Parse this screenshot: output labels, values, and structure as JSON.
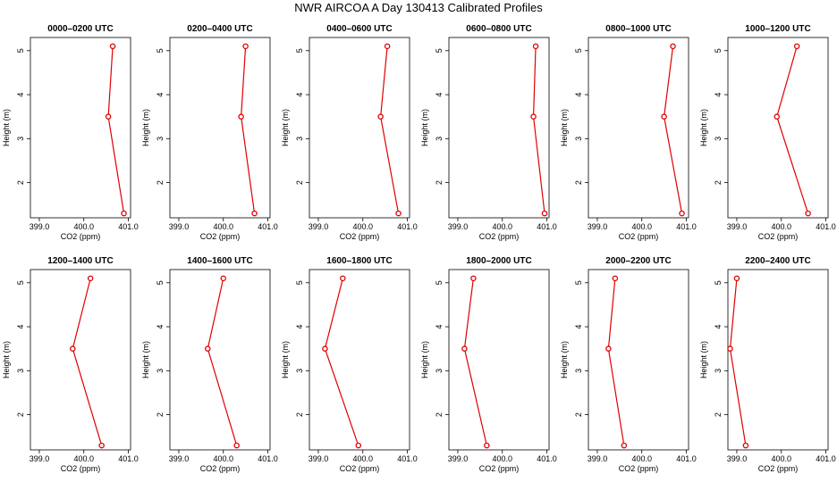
{
  "title": "NWR AIRCOA A  Day 130413  Calibrated Profiles",
  "colors": {
    "series": "#e00000",
    "axis": "#000000"
  },
  "chart_data": [
    {
      "type": "line",
      "title": "0000–0200 UTC",
      "xlabel": "CO2 (ppm)",
      "ylabel": "Height (m)",
      "xlim": [
        398.8,
        401.05
      ],
      "ylim": [
        1.2,
        5.3
      ],
      "xticks": [
        "399.0",
        "400.0",
        "401.0"
      ],
      "yticks": [
        "2",
        "3",
        "4",
        "5"
      ],
      "x": [
        400.65,
        400.55,
        400.9
      ],
      "y": [
        5.1,
        3.5,
        1.3
      ]
    },
    {
      "type": "line",
      "title": "0200–0400 UTC",
      "xlabel": "CO2 (ppm)",
      "ylabel": "Height (m)",
      "xlim": [
        398.8,
        401.05
      ],
      "ylim": [
        1.2,
        5.3
      ],
      "xticks": [
        "399.0",
        "400.0",
        "401.0"
      ],
      "yticks": [
        "2",
        "3",
        "4",
        "5"
      ],
      "x": [
        400.5,
        400.4,
        400.7
      ],
      "y": [
        5.1,
        3.5,
        1.3
      ]
    },
    {
      "type": "line",
      "title": "0400–0600 UTC",
      "xlabel": "CO2 (ppm)",
      "ylabel": "Height (m)",
      "xlim": [
        398.8,
        401.05
      ],
      "ylim": [
        1.2,
        5.3
      ],
      "xticks": [
        "399.0",
        "400.0",
        "401.0"
      ],
      "yticks": [
        "2",
        "3",
        "4",
        "5"
      ],
      "x": [
        400.55,
        400.4,
        400.8
      ],
      "y": [
        5.1,
        3.5,
        1.3
      ]
    },
    {
      "type": "line",
      "title": "0600–0800 UTC",
      "xlabel": "CO2 (ppm)",
      "ylabel": "Height (m)",
      "xlim": [
        398.8,
        401.05
      ],
      "ylim": [
        1.2,
        5.3
      ],
      "xticks": [
        "399.0",
        "400.0",
        "401.0"
      ],
      "yticks": [
        "2",
        "3",
        "4",
        "5"
      ],
      "x": [
        400.75,
        400.7,
        400.95
      ],
      "y": [
        5.1,
        3.5,
        1.3
      ]
    },
    {
      "type": "line",
      "title": "0800–1000 UTC",
      "xlabel": "CO2 (ppm)",
      "ylabel": "Height (m)",
      "xlim": [
        398.8,
        401.05
      ],
      "ylim": [
        1.2,
        5.3
      ],
      "xticks": [
        "399.0",
        "400.0",
        "401.0"
      ],
      "yticks": [
        "2",
        "3",
        "4",
        "5"
      ],
      "x": [
        400.7,
        400.5,
        400.9
      ],
      "y": [
        5.1,
        3.5,
        1.3
      ]
    },
    {
      "type": "line",
      "title": "1000–1200 UTC",
      "xlabel": "CO2 (ppm)",
      "ylabel": "Height (m)",
      "xlim": [
        398.8,
        401.05
      ],
      "ylim": [
        1.2,
        5.3
      ],
      "xticks": [
        "399.0",
        "400.0",
        "401.0"
      ],
      "yticks": [
        "2",
        "3",
        "4",
        "5"
      ],
      "x": [
        400.35,
        399.9,
        400.6
      ],
      "y": [
        5.1,
        3.5,
        1.3
      ]
    },
    {
      "type": "line",
      "title": "1200–1400 UTC",
      "xlabel": "CO2 (ppm)",
      "ylabel": "Height (m)",
      "xlim": [
        398.8,
        401.05
      ],
      "ylim": [
        1.2,
        5.3
      ],
      "xticks": [
        "399.0",
        "400.0",
        "401.0"
      ],
      "yticks": [
        "2",
        "3",
        "4",
        "5"
      ],
      "x": [
        400.15,
        399.75,
        400.4
      ],
      "y": [
        5.1,
        3.5,
        1.3
      ]
    },
    {
      "type": "line",
      "title": "1400–1600 UTC",
      "xlabel": "CO2 (ppm)",
      "ylabel": "Height (m)",
      "xlim": [
        398.8,
        401.05
      ],
      "ylim": [
        1.2,
        5.3
      ],
      "xticks": [
        "399.0",
        "400.0",
        "401.0"
      ],
      "yticks": [
        "2",
        "3",
        "4",
        "5"
      ],
      "x": [
        400.0,
        399.65,
        400.3
      ],
      "y": [
        5.1,
        3.5,
        1.3
      ]
    },
    {
      "type": "line",
      "title": "1600–1800 UTC",
      "xlabel": "CO2 (ppm)",
      "ylabel": "Height (m)",
      "xlim": [
        398.8,
        401.05
      ],
      "ylim": [
        1.2,
        5.3
      ],
      "xticks": [
        "399.0",
        "400.0",
        "401.0"
      ],
      "yticks": [
        "2",
        "3",
        "4",
        "5"
      ],
      "x": [
        399.55,
        399.15,
        399.9
      ],
      "y": [
        5.1,
        3.5,
        1.3
      ]
    },
    {
      "type": "line",
      "title": "1800–2000 UTC",
      "xlabel": "CO2 (ppm)",
      "ylabel": "Height (m)",
      "xlim": [
        398.8,
        401.05
      ],
      "ylim": [
        1.2,
        5.3
      ],
      "xticks": [
        "399.0",
        "400.0",
        "401.0"
      ],
      "yticks": [
        "2",
        "3",
        "4",
        "5"
      ],
      "x": [
        399.35,
        399.15,
        399.65
      ],
      "y": [
        5.1,
        3.5,
        1.3
      ]
    },
    {
      "type": "line",
      "title": "2000–2200 UTC",
      "xlabel": "CO2 (ppm)",
      "ylabel": "Height (m)",
      "xlim": [
        398.8,
        401.05
      ],
      "ylim": [
        1.2,
        5.3
      ],
      "xticks": [
        "399.0",
        "400.0",
        "401.0"
      ],
      "yticks": [
        "2",
        "3",
        "4",
        "5"
      ],
      "x": [
        399.4,
        399.25,
        399.6
      ],
      "y": [
        5.1,
        3.5,
        1.3
      ]
    },
    {
      "type": "line",
      "title": "2200–2400 UTC",
      "xlabel": "CO2 (ppm)",
      "ylabel": "Height (m)",
      "xlim": [
        398.8,
        401.05
      ],
      "ylim": [
        1.2,
        5.3
      ],
      "xticks": [
        "399.0",
        "400.0",
        "401.0"
      ],
      "yticks": [
        "2",
        "3",
        "4",
        "5"
      ],
      "x": [
        399.0,
        398.85,
        399.2
      ],
      "y": [
        5.1,
        3.5,
        1.3
      ]
    }
  ]
}
